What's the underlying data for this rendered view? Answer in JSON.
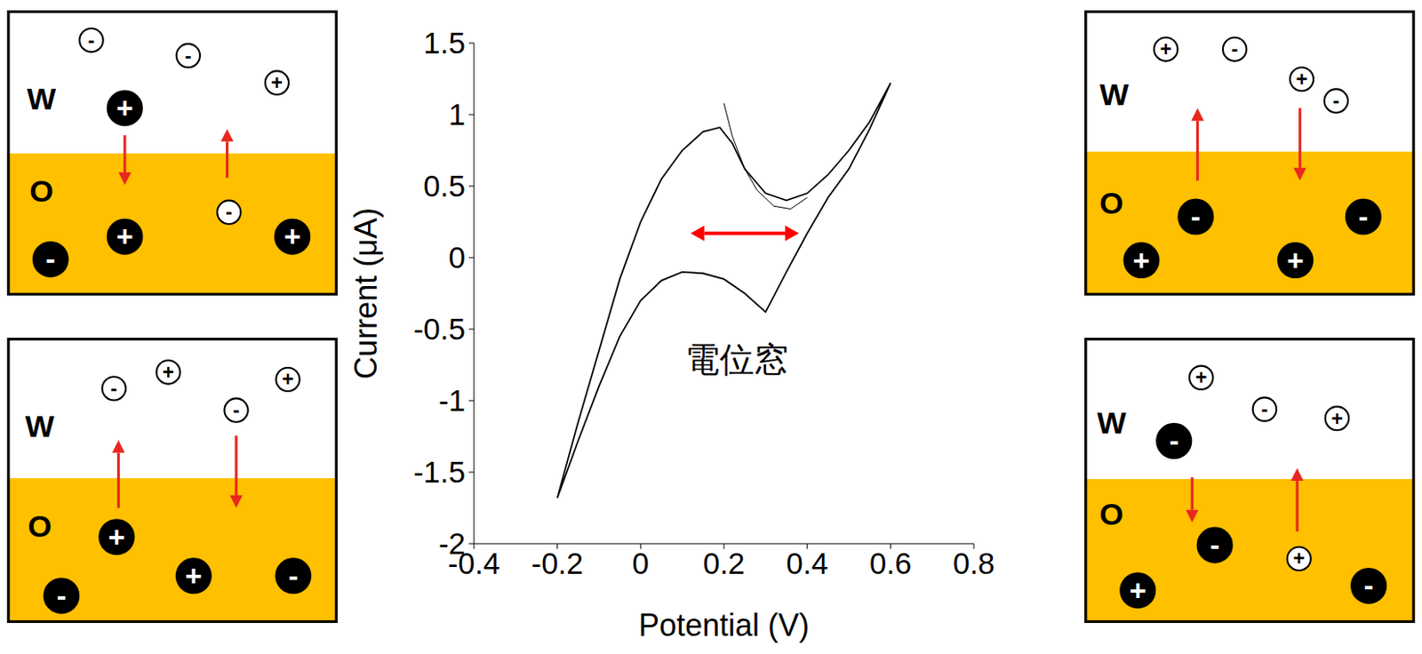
{
  "chart_data": {
    "type": "line",
    "x_label": "Potential (V)",
    "y_label": "Current (μA)",
    "xlim": [
      -0.4,
      0.8
    ],
    "xticks": [
      -0.4,
      -0.2,
      0,
      0.2,
      0.4,
      0.6,
      0.8
    ],
    "ylim": [
      -2,
      1.5
    ],
    "yticks": [
      -2,
      -1.5,
      -1,
      -0.5,
      0,
      0.5,
      1,
      1.5
    ],
    "grid": false,
    "series": [
      {
        "color": "#000000",
        "x": [
          -0.2,
          -0.15,
          -0.1,
          -0.05,
          0,
          0.05,
          0.1,
          0.15,
          0.19,
          0.22,
          0.25,
          0.3,
          0.35,
          0.4,
          0.45,
          0.5,
          0.55,
          0.6,
          0.55,
          0.5,
          0.45,
          0.4,
          0.35,
          0.3,
          0.25,
          0.2,
          0.15,
          0.1,
          0.05,
          0,
          -0.05,
          -0.1,
          -0.15,
          -0.2
        ],
        "values": [
          -1.68,
          -1.15,
          -0.65,
          -0.15,
          0.25,
          0.55,
          0.75,
          0.88,
          0.91,
          0.8,
          0.62,
          0.45,
          0.4,
          0.45,
          0.58,
          0.75,
          0.95,
          1.22,
          0.9,
          0.62,
          0.42,
          0.17,
          -0.1,
          -0.38,
          -0.25,
          -0.15,
          -0.11,
          -0.1,
          -0.16,
          -0.3,
          -0.55,
          -0.9,
          -1.28,
          -1.68
        ]
      },
      {
        "color": "#000000",
        "x": [
          0.2,
          0.22,
          0.25,
          0.28,
          0.32,
          0.36,
          0.4
        ],
        "values": [
          1.08,
          0.85,
          0.62,
          0.47,
          0.36,
          0.34,
          0.42
        ]
      }
    ],
    "potential_window": {
      "x": [
        0.12,
        0.38
      ],
      "y": 0.17,
      "color": "#ff0000"
    },
    "annotations": [
      {
        "text": "電位窓",
        "x": 0.23,
        "y": -0.71
      }
    ]
  },
  "diagrams": [
    {
      "labels": [
        "W",
        "O"
      ],
      "ions": [
        {
          "sign": "-",
          "style": "open"
        },
        {
          "sign": "-",
          "style": "open"
        },
        {
          "sign": "+",
          "style": "open"
        },
        {
          "sign": "+",
          "style": "filled"
        },
        {
          "sign": "-",
          "style": "open"
        },
        {
          "sign": "-",
          "style": "filled"
        },
        {
          "sign": "+",
          "style": "filled"
        },
        {
          "sign": "+",
          "style": "filled"
        }
      ]
    },
    {
      "labels": [
        "W",
        "O"
      ],
      "ions": [
        {
          "sign": "-",
          "style": "open"
        },
        {
          "sign": "+",
          "style": "open"
        },
        {
          "sign": "-",
          "style": "open"
        },
        {
          "sign": "+",
          "style": "open"
        },
        {
          "sign": "+",
          "style": "filled"
        },
        {
          "sign": "-",
          "style": "filled"
        },
        {
          "sign": "+",
          "style": "filled"
        },
        {
          "sign": "-",
          "style": "filled"
        }
      ]
    },
    {
      "labels": [
        "W",
        "O"
      ],
      "ions": [
        {
          "sign": "+",
          "style": "open"
        },
        {
          "sign": "-",
          "style": "open"
        },
        {
          "sign": "+",
          "style": "open"
        },
        {
          "sign": "-",
          "style": "open"
        },
        {
          "sign": "-",
          "style": "filled"
        },
        {
          "sign": "-",
          "style": "filled"
        },
        {
          "sign": "+",
          "style": "filled"
        },
        {
          "sign": "+",
          "style": "filled"
        }
      ]
    },
    {
      "labels": [
        "W",
        "O"
      ],
      "ions": [
        {
          "sign": "+",
          "style": "open"
        },
        {
          "sign": "-",
          "style": "open"
        },
        {
          "sign": "+",
          "style": "open"
        },
        {
          "sign": "-",
          "style": "filled"
        },
        {
          "sign": "-",
          "style": "filled"
        },
        {
          "sign": "+",
          "style": "open"
        },
        {
          "sign": "+",
          "style": "filled"
        },
        {
          "sign": "-",
          "style": "filled"
        }
      ]
    }
  ]
}
